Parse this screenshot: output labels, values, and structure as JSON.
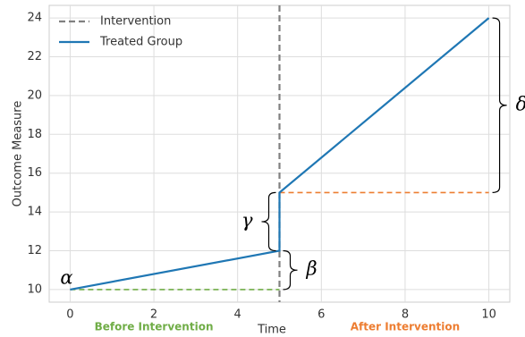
{
  "chart_data": {
    "type": "line",
    "xlabel": "Time",
    "ylabel": "Outcome Measure",
    "xlim": [
      -0.5,
      10.5
    ],
    "ylim": [
      9.35,
      24.65
    ],
    "xticks": [
      0,
      2,
      4,
      6,
      8,
      10
    ],
    "yticks": [
      10,
      12,
      14,
      16,
      18,
      20,
      22,
      24
    ],
    "grid": true,
    "legend": "upper left",
    "vlines": [
      {
        "name": "Intervention",
        "x": 5,
        "color": "#808080"
      }
    ],
    "series": [
      {
        "name": "Treated Group",
        "color": "#1f77b4",
        "x": [
          0,
          5,
          5,
          10
        ],
        "values": [
          10,
          12,
          15,
          24
        ]
      }
    ],
    "reference_lines": [
      {
        "y": 10,
        "x": [
          0,
          5
        ],
        "color": "#70ad47"
      },
      {
        "y": 15,
        "x": [
          5,
          10
        ],
        "color": "#ed7d31"
      }
    ],
    "annotations": [
      {
        "text": "α",
        "x": 0,
        "y": 10
      },
      {
        "text": "β",
        "x": 5,
        "y": [
          10,
          12
        ],
        "side": "right"
      },
      {
        "text": "γ",
        "x": 5,
        "y": [
          12,
          15
        ],
        "side": "left"
      },
      {
        "text": "δ",
        "x": 10,
        "y": [
          15,
          24
        ],
        "side": "right"
      }
    ],
    "phases": [
      {
        "label": "Before Intervention",
        "x": 2,
        "color": "#70ad47"
      },
      {
        "label": "After Intervention",
        "x": 8,
        "color": "#ed7d31"
      }
    ]
  }
}
